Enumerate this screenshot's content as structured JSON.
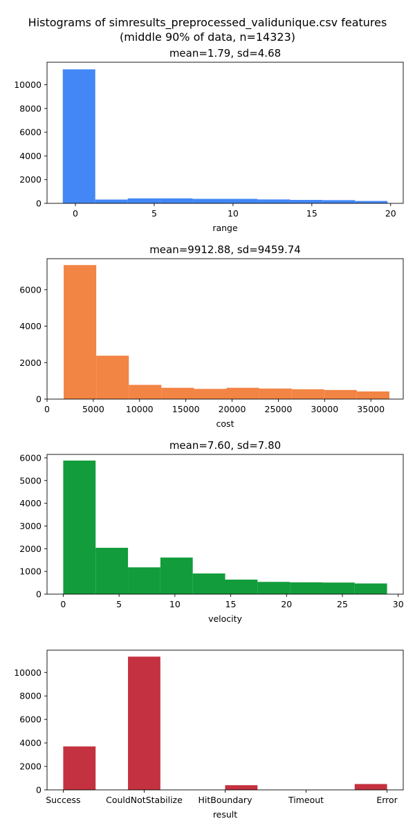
{
  "figure": {
    "title_line1": "Histograms of simresults_preprocessed_validunique.csv features",
    "title_line2": "(middle 90% of data, n=14323)"
  },
  "chart_data": [
    {
      "type": "bar",
      "title": "mean=1.79, sd=4.68",
      "xlabel": "range",
      "color": "#4287f5",
      "xlim": [
        -1.8,
        20.8
      ],
      "ylim": [
        0,
        11900
      ],
      "xticks": [
        0,
        5,
        10,
        15,
        20
      ],
      "xtick_labels": [
        "0",
        "5",
        "10",
        "15",
        "20"
      ],
      "yticks": [
        0,
        2000,
        4000,
        6000,
        8000,
        10000
      ],
      "ytick_labels": [
        "0",
        "2000",
        "4000",
        "6000",
        "8000",
        "10000"
      ],
      "bin_edges": [
        -0.8,
        1.26,
        3.32,
        5.38,
        7.44,
        9.5,
        11.56,
        13.62,
        15.68,
        17.74,
        19.8
      ],
      "values": [
        11300,
        320,
        420,
        420,
        380,
        380,
        330,
        290,
        270,
        200
      ]
    },
    {
      "type": "bar",
      "title": "mean=9912.88, sd=9459.74",
      "xlabel": "cost",
      "color": "#f28444",
      "xlim": [
        0,
        38500
      ],
      "ylim": [
        0,
        7700
      ],
      "xticks": [
        0,
        5000,
        10000,
        15000,
        20000,
        25000,
        30000,
        35000
      ],
      "xtick_labels": [
        "0",
        "5000",
        "10000",
        "15000",
        "20000",
        "25000",
        "30000",
        "35000"
      ],
      "yticks": [
        0,
        2000,
        4000,
        6000
      ],
      "ytick_labels": [
        "0",
        "2000",
        "4000",
        "6000"
      ],
      "bin_edges": [
        1800,
        5320,
        8840,
        12360,
        15880,
        19400,
        22920,
        26440,
        29960,
        33480,
        37000
      ],
      "values": [
        7350,
        2380,
        780,
        620,
        560,
        620,
        580,
        540,
        500,
        420
      ]
    },
    {
      "type": "bar",
      "title": "mean=7.60, sd=7.80",
      "xlabel": "velocity",
      "color": "#129c3c",
      "xlim": [
        -1.45,
        30.45
      ],
      "ylim": [
        0,
        6150
      ],
      "xticks": [
        0,
        5,
        10,
        15,
        20,
        25,
        30
      ],
      "xtick_labels": [
        "0",
        "5",
        "10",
        "15",
        "20",
        "25",
        "30"
      ],
      "yticks": [
        0,
        1000,
        2000,
        3000,
        4000,
        5000,
        6000
      ],
      "ytick_labels": [
        "0",
        "1000",
        "2000",
        "3000",
        "4000",
        "5000",
        "6000"
      ],
      "bin_edges": [
        0,
        2.9,
        5.8,
        8.7,
        11.6,
        14.5,
        17.4,
        20.3,
        23.2,
        26.1,
        29
      ],
      "values": [
        5880,
        2040,
        1180,
        1610,
        910,
        640,
        540,
        520,
        510,
        470
      ]
    },
    {
      "type": "bar",
      "title": "",
      "xlabel": "result",
      "color": "#c43140",
      "xlim": [
        -0.2,
        4.2
      ],
      "ylim": [
        0,
        11900
      ],
      "xticks": [
        0,
        1,
        2,
        3,
        4
      ],
      "xtick_labels": [
        "Success",
        "CouldNotStabilize",
        "HitBoundary",
        "Timeout",
        "Error"
      ],
      "yticks": [
        0,
        2000,
        4000,
        6000,
        8000,
        10000
      ],
      "ytick_labels": [
        "0",
        "2000",
        "4000",
        "6000",
        "8000",
        "10000"
      ],
      "bin_edges": [
        0,
        0.4,
        0.8,
        1.2,
        1.6,
        2.0,
        2.4,
        2.8,
        3.2,
        3.6,
        4.0
      ],
      "values": [
        3700,
        0,
        11350,
        0,
        0,
        400,
        0,
        0,
        0,
        500
      ]
    }
  ]
}
